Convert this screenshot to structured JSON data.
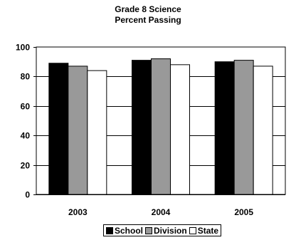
{
  "chart_data": {
    "type": "bar",
    "title": "Grade 8 Science",
    "subtitle": "Percent Passing",
    "xlabel": "",
    "ylabel": "",
    "categories": [
      "2003",
      "2004",
      "2005"
    ],
    "series": [
      {
        "name": "School",
        "values": [
          89,
          91,
          90
        ],
        "color": "#000000"
      },
      {
        "name": "Division",
        "values": [
          87,
          92,
          91
        ],
        "color": "#999999"
      },
      {
        "name": "State",
        "values": [
          84,
          88,
          87
        ],
        "color": "#ffffff"
      }
    ],
    "ylim": [
      0,
      100
    ],
    "yticks": [
      0,
      20,
      40,
      60,
      80,
      100
    ],
    "grid": true,
    "legend": "bottom"
  }
}
